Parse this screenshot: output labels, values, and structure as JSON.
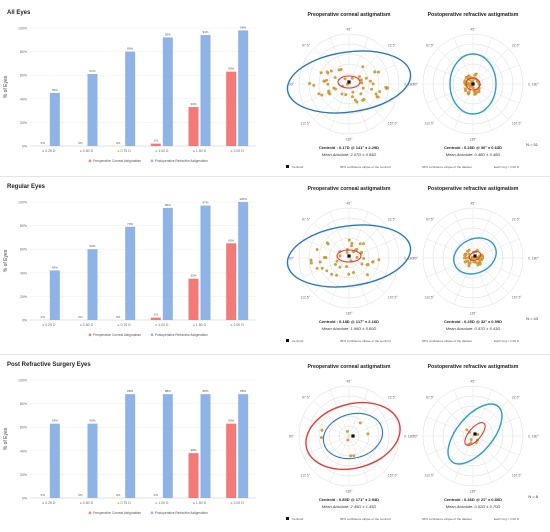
{
  "rows": [
    {
      "title": "All Eyes",
      "polar_titles": [
        "Preoperative corneal astigmatism",
        "Postoperative refractive astigmatism"
      ],
      "centroid_pre": "Centroid :  0.17D @ 141° ± 2.29D",
      "mean_pre": "Mean Absolute:   2.07D  ±  0.95D",
      "centroid_post": "Centroid :  0.28D @ 30°  ± 0.63D",
      "mean_post": "Mean Absolute:   0.48D  ±  0.48D",
      "n_label": "N = 51"
    },
    {
      "title": "Regular Eyes",
      "polar_titles": [
        "Preoperative corneal astigmatism",
        "Postoperative refractive astigmatism"
      ],
      "centroid_pre": "Centroid :  0.18D @ 117° ± 2.16D",
      "mean_pre": "Mean Absolute:   1.99D  ±  0.80D",
      "centroid_post": "Centroid :  0.25D @ 32°  ± 0.59D",
      "mean_post": "Mean Absolute:   0.47D  ±  0.43D",
      "n_label": "N = 43"
    },
    {
      "title": "Post Refractive Surgery Eyes",
      "polar_titles": [
        "Preoperative corneal astigmatism",
        "Postoperative refractive astigmatism"
      ],
      "centroid_pre": "Centroid :  0.85D @ 171° ± 2.94D",
      "mean_pre": "Mean Absolute:   2.49D  ±  1.45D",
      "centroid_post": "Centroid :  0.46D @ 21°  ± 0.80D",
      "mean_post": "Mean Absolute:   0.52D  ±  0.70D",
      "n_label": "N = 8"
    }
  ],
  "polar_legend": {
    "centroid": "Centroid",
    "ci_centroid": "95% confidence ellipse of the centroid",
    "ci_dataset": "95% confidence ellipse of the dataset",
    "ring": "Each ring = 1.00 D"
  },
  "angle_labels": [
    "45°",
    "22.5°",
    "0, 180°",
    "157.5°",
    "135°",
    "112.5°",
    "90°",
    "67.5°"
  ],
  "colors": {
    "pre": "#f47a78",
    "post": "#8fb3e6",
    "ellipse_pre": "#e23b35",
    "ellipse_post": "#1a7fc4",
    "dataset_pre": "#2b78c2",
    "dataset_post": "#2b9bd6",
    "point": "#d9a63a"
  },
  "chart_data": [
    {
      "type": "bar",
      "title": "All Eyes",
      "ylabel": "% of Eyes",
      "ylim": [
        0,
        100
      ],
      "categories": [
        "≤ 0.25 D",
        "≤ 0.50 D",
        "≤ 0.75 D",
        "≤ 1.00 D",
        "≤ 1.50 D",
        "≤ 2.00 D"
      ],
      "y_ticks": [
        "0%",
        "20%",
        "40%",
        "60%",
        "80%",
        "100%"
      ],
      "series": [
        {
          "name": "Preoperative Corneal Astigmatism",
          "values": [
            0,
            0,
            0,
            2,
            33,
            63
          ],
          "labels": [
            "0%",
            "0%",
            "0%",
            "2%",
            "33%",
            "63%"
          ]
        },
        {
          "name": "Postoperative Refractive Astigmatism",
          "values": [
            45,
            61,
            80,
            92,
            94,
            98
          ],
          "labels": [
            "45%",
            "61%",
            "80%",
            "92%",
            "94%",
            "98%"
          ]
        }
      ]
    },
    {
      "type": "bar",
      "title": "Regular Eyes",
      "ylabel": "% of Eyes",
      "ylim": [
        0,
        100
      ],
      "categories": [
        "≤ 0.25 D",
        "≤ 0.50 D",
        "≤ 0.75 D",
        "≤ 1.00 D",
        "≤ 1.50 D",
        "≤ 2.00 D"
      ],
      "y_ticks": [
        "0%",
        "20%",
        "40%",
        "60%",
        "80%",
        "100%"
      ],
      "series": [
        {
          "name": "Preoperative Corneal Astigmatism",
          "values": [
            0,
            0,
            0,
            2,
            35,
            65
          ],
          "labels": [
            "0%",
            "0%",
            "0%",
            "2%",
            "35%",
            "65%"
          ]
        },
        {
          "name": "Postoperative Refractive Astigmatism",
          "values": [
            42,
            60,
            79,
            95,
            97,
            100
          ],
          "labels": [
            "42%",
            "60%",
            "79%",
            "95%",
            "97%",
            "100%"
          ]
        }
      ]
    },
    {
      "type": "bar",
      "title": "Post Refractive Surgery Eyes",
      "ylabel": "% of Eyes",
      "ylim": [
        0,
        100
      ],
      "categories": [
        "≤ 0.25 D",
        "≤ 0.50 D",
        "≤ 0.75 D",
        "≤ 1.00 D",
        "≤ 1.50 D",
        "≤ 2.00 D"
      ],
      "y_ticks": [
        "0%",
        "20%",
        "40%",
        "60%",
        "80%",
        "100%"
      ],
      "series": [
        {
          "name": "Preoperative Corneal Astigmatism",
          "values": [
            0,
            0,
            0,
            0,
            38,
            63
          ],
          "labels": [
            "0%",
            "0%",
            "0%",
            "0%",
            "38%",
            "63%"
          ]
        },
        {
          "name": "Postoperative Refractive Astigmatism",
          "values": [
            63,
            63,
            88,
            88,
            88,
            88
          ],
          "labels": [
            "63%",
            "63%",
            "88%",
            "88%",
            "88%",
            "88%"
          ]
        }
      ]
    }
  ]
}
